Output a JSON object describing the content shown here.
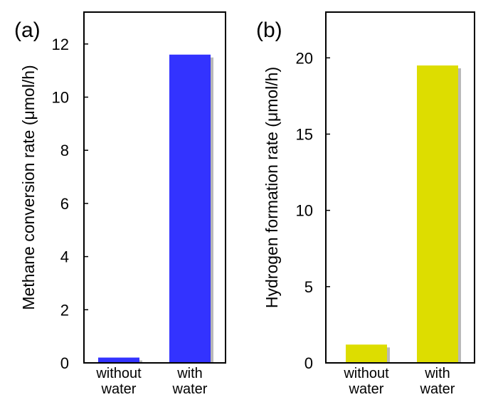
{
  "chart_data": [
    {
      "type": "bar",
      "panel_label": "(a)",
      "categories": [
        [
          "without",
          "water"
        ],
        [
          "with",
          "water"
        ]
      ],
      "values": [
        0.2,
        11.6
      ],
      "ylabel": "Methane conversion rate (μmol/h)",
      "ylim": [
        0,
        13.2
      ],
      "yticks": [
        0,
        2,
        4,
        6,
        8,
        10,
        12
      ],
      "bar_color": "#3333ff",
      "shadow_color": "#b8b8b8"
    },
    {
      "type": "bar",
      "panel_label": "(b)",
      "categories": [
        [
          "without",
          "water"
        ],
        [
          "with",
          "water"
        ]
      ],
      "values": [
        1.2,
        19.5
      ],
      "ylabel": "Hydrogen formation rate (μmol/h)",
      "ylim": [
        0,
        23
      ],
      "yticks": [
        0,
        5,
        10,
        15,
        20
      ],
      "bar_color": "#dddd00",
      "shadow_color": "#b8b8b8"
    }
  ]
}
